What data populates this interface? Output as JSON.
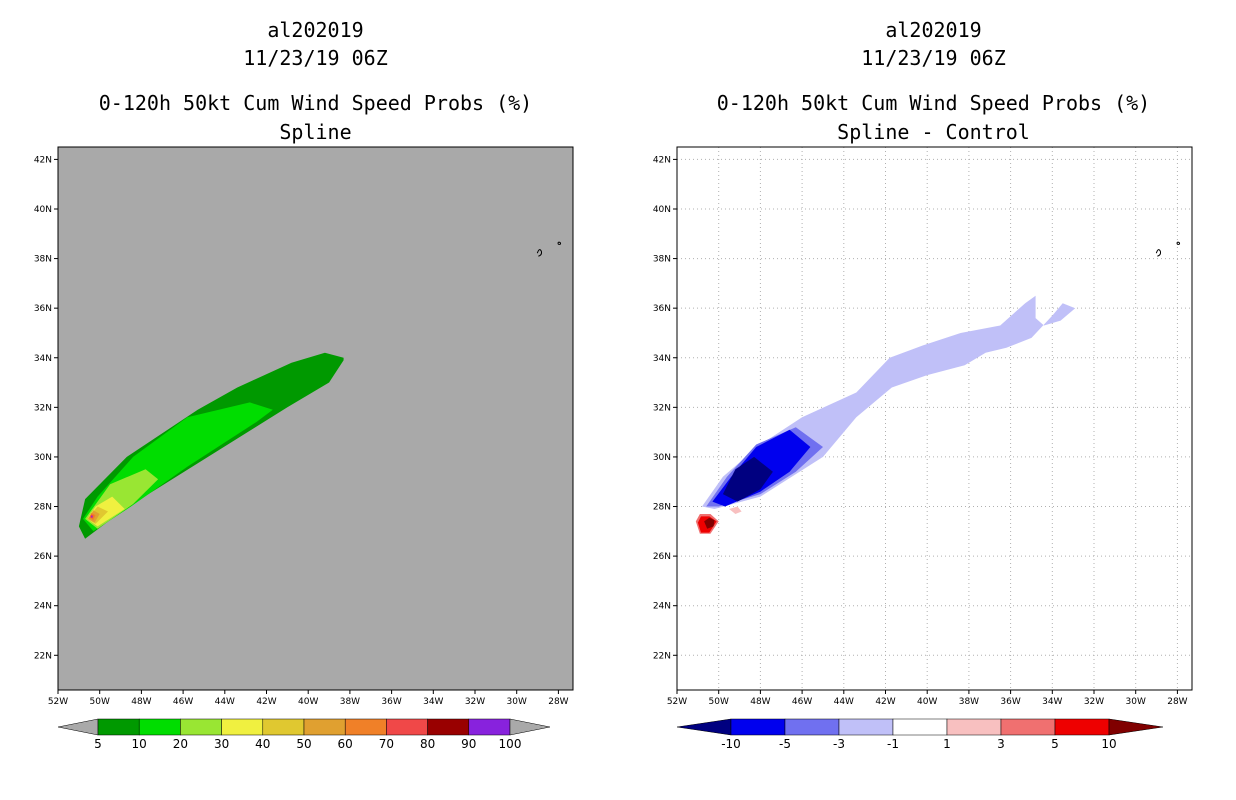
{
  "chart_data": [
    {
      "type": "contour-map",
      "storm_id": "al202019",
      "datetime": "11/23/19 06Z",
      "title": "0-120h 50kt Cum Wind Speed Probs (%)",
      "subtitle": "Spline",
      "xlabel": "",
      "ylabel": "",
      "x_ticks": [
        "52W",
        "50W",
        "48W",
        "46W",
        "44W",
        "42W",
        "40W",
        "38W",
        "36W",
        "34W",
        "32W",
        "30W",
        "28W"
      ],
      "y_ticks": [
        "22N",
        "24N",
        "26N",
        "28N",
        "30N",
        "32N",
        "34N",
        "36N",
        "38N",
        "40N",
        "42N"
      ],
      "lon_range": [
        -52,
        -27.3
      ],
      "lat_range": [
        20.6,
        42.5
      ],
      "grid": false,
      "background_color": "#a9a9a9",
      "colorbar": {
        "labels": [
          "5",
          "10",
          "20",
          "30",
          "40",
          "50",
          "60",
          "70",
          "80",
          "90",
          "100"
        ],
        "colors": [
          "#009900",
          "#00dd00",
          "#99e633",
          "#f0f040",
          "#e0c830",
          "#e0a030",
          "#f08028",
          "#f04848",
          "#990000",
          "#8822dd"
        ]
      },
      "regions": [
        {
          "level": "5-10",
          "color": "#009900",
          "points": [
            [
              -51.0,
              27.2
            ],
            [
              -50.7,
              26.7
            ],
            [
              -48.8,
              27.9
            ],
            [
              -45.0,
              29.9
            ],
            [
              -41.0,
              32.0
            ],
            [
              -39.0,
              33.0
            ],
            [
              -38.3,
              33.9
            ],
            [
              -38.3,
              34.0
            ],
            [
              -39.2,
              34.2
            ],
            [
              -40.8,
              33.8
            ],
            [
              -43.4,
              32.8
            ],
            [
              -45.3,
              31.9
            ],
            [
              -48.7,
              30.0
            ],
            [
              -50.7,
              28.3
            ]
          ]
        },
        {
          "level": "10-20",
          "color": "#00dd00",
          "points": [
            [
              -50.8,
              27.5
            ],
            [
              -50.3,
              27.0
            ],
            [
              -48.5,
              28.0
            ],
            [
              -45.8,
              29.6
            ],
            [
              -42.5,
              31.4
            ],
            [
              -41.7,
              31.9
            ],
            [
              -42.8,
              32.2
            ],
            [
              -45.8,
              31.6
            ],
            [
              -48.4,
              30.0
            ],
            [
              -50.1,
              28.4
            ]
          ]
        },
        {
          "level": "20-30",
          "color": "#99e633",
          "points": [
            [
              -50.7,
              27.5
            ],
            [
              -50.1,
              27.1
            ],
            [
              -48.4,
              28.1
            ],
            [
              -47.2,
              29.1
            ],
            [
              -47.8,
              29.5
            ],
            [
              -49.5,
              28.9
            ]
          ]
        },
        {
          "level": "30-40",
          "color": "#f0f040",
          "points": [
            [
              -50.6,
              27.5
            ],
            [
              -50.1,
              27.2
            ],
            [
              -48.8,
              27.9
            ],
            [
              -49.4,
              28.4
            ],
            [
              -50.2,
              28.0
            ]
          ]
        },
        {
          "level": "40-50",
          "color": "#e0c830",
          "points": [
            [
              -50.6,
              27.5
            ],
            [
              -50.2,
              27.3
            ],
            [
              -49.6,
              27.8
            ],
            [
              -50.1,
              28.0
            ]
          ]
        },
        {
          "level": "50-60",
          "color": "#e0a030",
          "points": [
            [
              -50.55,
              27.5
            ],
            [
              -50.25,
              27.35
            ],
            [
              -50.0,
              27.7
            ],
            [
              -50.3,
              27.85
            ]
          ]
        },
        {
          "level": "60-70",
          "color": "#f08028",
          "points": [
            [
              -50.5,
              27.55
            ],
            [
              -50.3,
              27.45
            ],
            [
              -50.2,
              27.65
            ],
            [
              -50.4,
              27.75
            ]
          ]
        },
        {
          "level": "70-80",
          "color": "#f04848",
          "points": [
            [
              -50.45,
              27.55
            ],
            [
              -50.32,
              27.52
            ],
            [
              -50.3,
              27.65
            ],
            [
              -50.42,
              27.68
            ]
          ]
        },
        {
          "level": "80-90",
          "color": "#8822dd",
          "points": [
            [
              -50.42,
              27.57
            ],
            [
              -50.35,
              27.56
            ],
            [
              -50.35,
              27.62
            ],
            [
              -50.41,
              27.63
            ]
          ]
        }
      ]
    },
    {
      "type": "contour-map",
      "storm_id": "al202019",
      "datetime": "11/23/19 06Z",
      "title": "0-120h 50kt Cum Wind Speed Probs (%)",
      "subtitle": "Spline - Control",
      "xlabel": "",
      "ylabel": "",
      "x_ticks": [
        "52W",
        "50W",
        "48W",
        "46W",
        "44W",
        "42W",
        "40W",
        "38W",
        "36W",
        "34W",
        "32W",
        "30W",
        "28W"
      ],
      "y_ticks": [
        "22N",
        "24N",
        "26N",
        "28N",
        "30N",
        "32N",
        "34N",
        "36N",
        "38N",
        "40N",
        "42N"
      ],
      "lon_range": [
        -52,
        -27.3
      ],
      "lat_range": [
        20.6,
        42.5
      ],
      "grid": true,
      "background_color": "#ffffff",
      "colorbar": {
        "labels": [
          "-10",
          "-5",
          "-3",
          "-1",
          "1",
          "3",
          "5",
          "10"
        ],
        "colors": [
          "#000080",
          "#0000ee",
          "#7070f0",
          "#c0c0f8",
          "#ffffff",
          "#f8c0c0",
          "#f07070",
          "#ee0000",
          "#800000"
        ]
      },
      "regions": [
        {
          "level": "-3 to -1",
          "color": "#c0c0f8",
          "points": [
            [
              -50.8,
              28.0
            ],
            [
              -50.2,
              27.9
            ],
            [
              -48.0,
              28.4
            ],
            [
              -45.0,
              30.0
            ],
            [
              -43.4,
              31.6
            ],
            [
              -41.7,
              32.8
            ],
            [
              -40.0,
              33.3
            ],
            [
              -38.2,
              33.7
            ],
            [
              -37.2,
              34.2
            ],
            [
              -36.2,
              34.4
            ],
            [
              -35.0,
              34.8
            ],
            [
              -34.0,
              35.7
            ],
            [
              -33.5,
              36.2
            ],
            [
              -32.9,
              36.0
            ],
            [
              -33.6,
              35.5
            ],
            [
              -34.4,
              35.3
            ],
            [
              -34.8,
              35.6
            ],
            [
              -34.8,
              36.5
            ],
            [
              -35.3,
              36.2
            ],
            [
              -36.5,
              35.3
            ],
            [
              -38.4,
              35.0
            ],
            [
              -40.2,
              34.5
            ],
            [
              -41.8,
              34.0
            ],
            [
              -43.4,
              32.6
            ],
            [
              -46.0,
              31.6
            ],
            [
              -48.0,
              30.5
            ],
            [
              -49.8,
              29.2
            ]
          ]
        },
        {
          "level": "-5 to -3",
          "color": "#7070f0",
          "points": [
            [
              -50.6,
              28.0
            ],
            [
              -50.0,
              28.0
            ],
            [
              -48.0,
              28.5
            ],
            [
              -46.3,
              29.4
            ],
            [
              -45.0,
              30.4
            ],
            [
              -46.3,
              31.2
            ],
            [
              -48.2,
              30.5
            ],
            [
              -49.6,
              29.2
            ]
          ]
        },
        {
          "level": "-10 to -5",
          "color": "#0000ee",
          "points": [
            [
              -50.3,
              28.2
            ],
            [
              -49.7,
              28.0
            ],
            [
              -48.0,
              28.6
            ],
            [
              -46.6,
              29.4
            ],
            [
              -45.6,
              30.4
            ],
            [
              -46.6,
              31.1
            ],
            [
              -48.2,
              30.4
            ],
            [
              -49.4,
              29.2
            ]
          ]
        },
        {
          "level": "< -10",
          "color": "#000080",
          "points": [
            [
              -49.8,
              28.5
            ],
            [
              -49.1,
              28.2
            ],
            [
              -48.0,
              28.7
            ],
            [
              -47.4,
              29.4
            ],
            [
              -48.3,
              30.0
            ],
            [
              -49.2,
              29.5
            ]
          ]
        },
        {
          "level": "1 to 3",
          "color": "#f8c0c0",
          "points": [
            [
              -49.5,
              27.9
            ],
            [
              -49.2,
              27.7
            ],
            [
              -48.9,
              27.8
            ],
            [
              -49.1,
              28.0
            ]
          ]
        },
        {
          "level": "3 to 5",
          "color": "#f07070",
          "points": [
            [
              -51.1,
              27.4
            ],
            [
              -50.9,
              26.9
            ],
            [
              -50.4,
              26.9
            ],
            [
              -50.0,
              27.4
            ],
            [
              -50.4,
              27.7
            ],
            [
              -50.9,
              27.7
            ]
          ]
        },
        {
          "level": "5 to 10",
          "color": "#ee0000",
          "points": [
            [
              -51.0,
              27.35
            ],
            [
              -50.85,
              26.95
            ],
            [
              -50.45,
              26.95
            ],
            [
              -50.1,
              27.4
            ],
            [
              -50.45,
              27.6
            ],
            [
              -50.85,
              27.6
            ]
          ]
        },
        {
          "level": "> 10",
          "color": "#800000",
          "points": [
            [
              -50.7,
              27.4
            ],
            [
              -50.55,
              27.1
            ],
            [
              -50.25,
              27.2
            ],
            [
              -50.2,
              27.45
            ],
            [
              -50.45,
              27.55
            ]
          ]
        }
      ]
    }
  ]
}
